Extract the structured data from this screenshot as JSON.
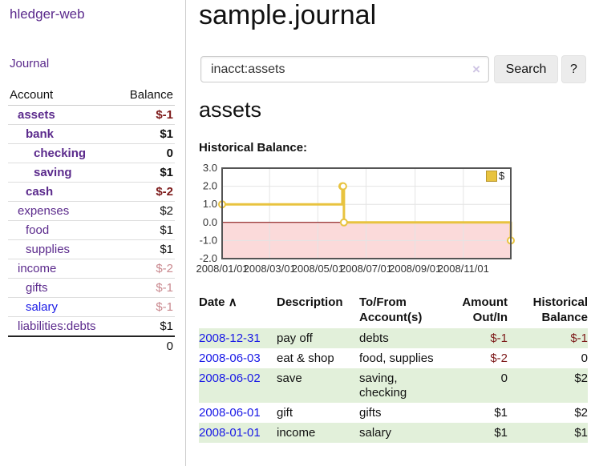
{
  "colors": {
    "link_purple": "#5b2a8c",
    "link_blue": "#1919e6",
    "negative_strong": "#7d1a1a",
    "negative_dim": "#c9888e",
    "row_green": "#e2f0da",
    "series_gold": "#e8c33f",
    "negative_region_pink": "#fbdada",
    "zero_line_maroon": "#800000",
    "plot_border_gray": "#545454"
  },
  "sidebar": {
    "brand": "hledger-web",
    "journal_link": "Journal",
    "account_header": "Account",
    "balance_header": "Balance",
    "accounts": [
      {
        "name": "assets",
        "balance": "$-1",
        "depth": 1,
        "bold": true,
        "neg": "strong"
      },
      {
        "name": "bank",
        "balance": "$1",
        "depth": 2,
        "bold": true,
        "neg": "none"
      },
      {
        "name": "checking",
        "balance": "0",
        "depth": 3,
        "bold": true,
        "neg": "none"
      },
      {
        "name": "saving",
        "balance": "$1",
        "depth": 3,
        "bold": true,
        "neg": "none"
      },
      {
        "name": "cash",
        "balance": "$-2",
        "depth": 2,
        "bold": true,
        "neg": "strong"
      },
      {
        "name": "expenses",
        "balance": "$2",
        "depth": 1,
        "bold": false,
        "neg": "none"
      },
      {
        "name": "food",
        "balance": "$1",
        "depth": 2,
        "bold": false,
        "neg": "none"
      },
      {
        "name": "supplies",
        "balance": "$1",
        "depth": 2,
        "bold": false,
        "neg": "none"
      },
      {
        "name": "income",
        "balance": "$-2",
        "depth": 1,
        "bold": false,
        "neg": "dim"
      },
      {
        "name": "gifts",
        "balance": "$-1",
        "depth": 2,
        "bold": false,
        "neg": "dim"
      },
      {
        "name": "salary",
        "balance": "$-1",
        "depth": 2,
        "bold": false,
        "neg": "dim",
        "link": "blue"
      },
      {
        "name": "liabilities:debts",
        "balance": "$1",
        "depth": 1,
        "bold": false,
        "neg": "none"
      }
    ],
    "total": "0"
  },
  "header": {
    "title": "sample.journal"
  },
  "search": {
    "value": "inacct:assets",
    "clear_icon": "×",
    "button_label": "Search",
    "help_label": "?"
  },
  "account_page": {
    "heading": "assets",
    "section_label": "Historical Balance:"
  },
  "chart_data": {
    "type": "line",
    "step": true,
    "title": "Historical Balance:",
    "series": [
      {
        "name": "$",
        "color": "#e8c33f",
        "points": [
          [
            "2008-01-01",
            1
          ],
          [
            "2008-06-01",
            2
          ],
          [
            "2008-06-02",
            2
          ],
          [
            "2008-06-03",
            0
          ],
          [
            "2008-12-31",
            -1
          ]
        ]
      }
    ],
    "x_range": [
      "2008-01-01",
      "2008-12-31"
    ],
    "ylim": [
      -2,
      3
    ],
    "y_ticks": [
      "3.0",
      "2.0",
      "1.0",
      "0.0",
      "-1.0",
      "-2.0"
    ],
    "x_ticks": [
      "2008/01/01",
      "2008/03/01",
      "2008/05/01",
      "2008/07/01",
      "2008/09/01",
      "2008/11/01"
    ],
    "legend": "$",
    "legend_position": "top-right",
    "grid": true,
    "negative_region_fill": "#fbdada",
    "zero_line_color": "#800000"
  },
  "register": {
    "headers": {
      "date": "Date",
      "sort_icon": "∧",
      "description": "Description",
      "accounts": "To/From Account(s)",
      "amount": "Amount Out/In",
      "balance": "Historical Balance"
    },
    "rows": [
      {
        "date": "2008-12-31",
        "description": "pay off",
        "accounts": "debts",
        "amount": "$-1",
        "balance": "$-1",
        "amount_neg": true,
        "balance_neg": true
      },
      {
        "date": "2008-06-03",
        "description": "eat & shop",
        "accounts": "food, supplies",
        "amount": "$-2",
        "balance": "0",
        "amount_neg": true,
        "balance_neg": false
      },
      {
        "date": "2008-06-02",
        "description": "save",
        "accounts": "saving, checking",
        "amount": "0",
        "balance": "$2",
        "amount_neg": false,
        "balance_neg": false
      },
      {
        "date": "2008-06-01",
        "description": "gift",
        "accounts": "gifts",
        "amount": "$1",
        "balance": "$2",
        "amount_neg": false,
        "balance_neg": false
      },
      {
        "date": "2008-01-01",
        "description": "income",
        "accounts": "salary",
        "amount": "$1",
        "balance": "$1",
        "amount_neg": false,
        "balance_neg": false
      }
    ]
  }
}
